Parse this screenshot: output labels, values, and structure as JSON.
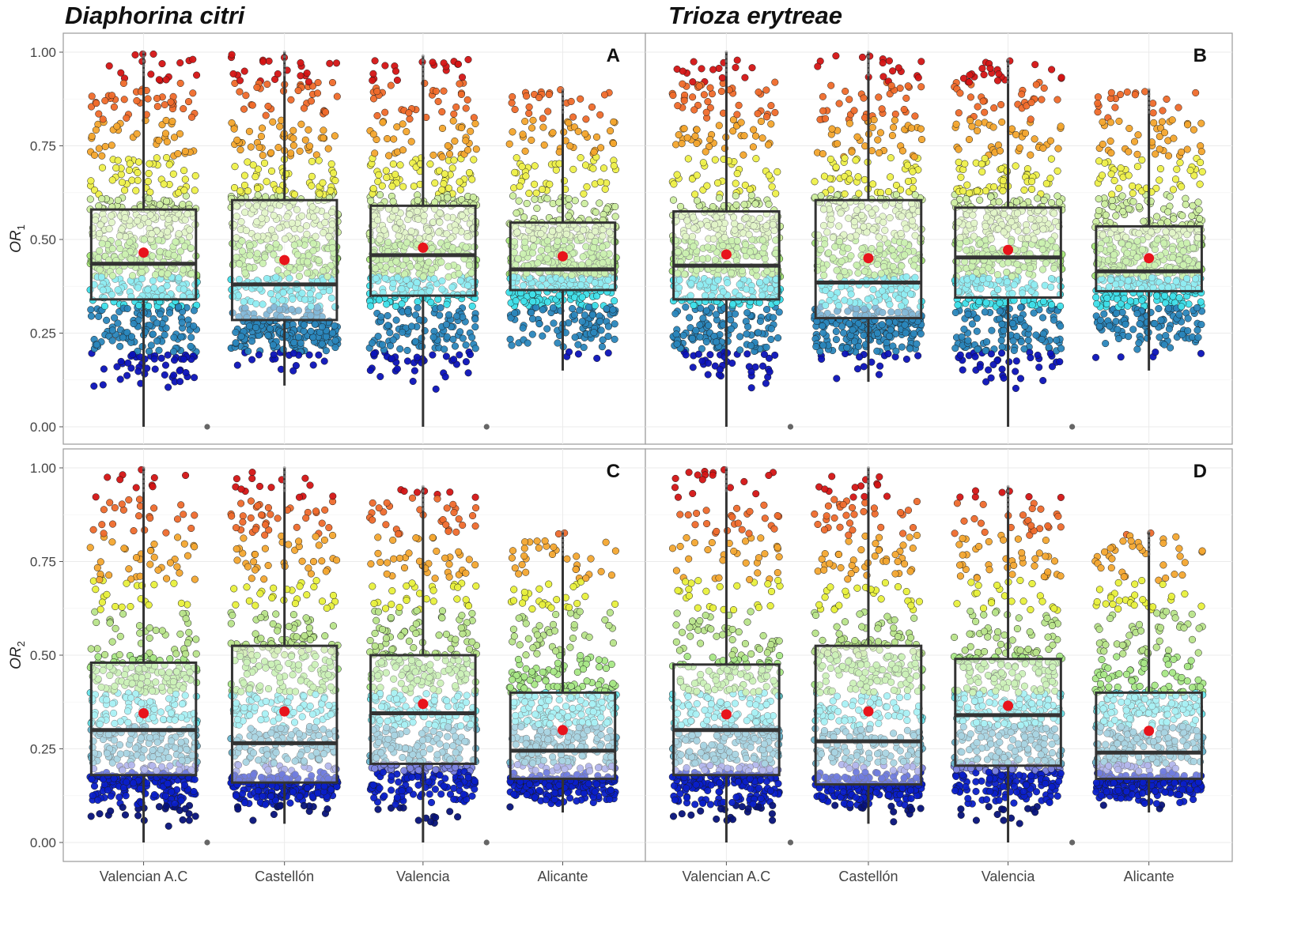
{
  "headings": {
    "left_species": "Diaphorina citri",
    "right_species": "Trioza erytreae"
  },
  "colors": {
    "mean_marker": "#e8141c",
    "box_stroke": "#333333",
    "outlier": "#666666",
    "grid": "#ebebeb",
    "bands": [
      "#0b12b8",
      "#2e8fc4",
      "#3fe6ef",
      "#9fe870",
      "#e8f04a",
      "#f5b12a",
      "#ef6a2a",
      "#d41414"
    ]
  },
  "chart_data": [
    {
      "type": "boxplot",
      "panel": "A",
      "species": "Diaphorina citri",
      "ylabel": "OR",
      "ylabel_subscript": "1",
      "ylim": [
        0,
        1
      ],
      "yticks": [
        "0.00",
        "0.25",
        "0.50",
        "0.75",
        "1.00"
      ],
      "categories": [
        "Valencian A.C",
        "Castellón",
        "Valencia",
        "Alicante"
      ],
      "series": [
        {
          "name": "Valencian A.C",
          "min": 0.0,
          "q1": 0.34,
          "median": 0.435,
          "q3": 0.58,
          "max": 1.0,
          "mean": 0.465,
          "outliers": [
            0.0
          ]
        },
        {
          "name": "Castellón",
          "min": 0.11,
          "q1": 0.285,
          "median": 0.38,
          "q3": 0.605,
          "max": 1.0,
          "mean": 0.445,
          "outliers": []
        },
        {
          "name": "Valencia",
          "min": 0.0,
          "q1": 0.35,
          "median": 0.458,
          "q3": 0.59,
          "max": 0.99,
          "mean": 0.478,
          "outliers": [
            0.0
          ]
        },
        {
          "name": "Alicante",
          "min": 0.15,
          "q1": 0.365,
          "median": 0.42,
          "q3": 0.545,
          "max": 0.9,
          "mean": 0.455,
          "outliers": []
        }
      ]
    },
    {
      "type": "boxplot",
      "panel": "B",
      "species": "Trioza erytreae",
      "ylim": [
        0,
        1
      ],
      "categories": [
        "Valencian A.C",
        "Castellón",
        "Valencia",
        "Alicante"
      ],
      "series": [
        {
          "name": "Valencian A.C",
          "min": 0.0,
          "q1": 0.34,
          "median": 0.43,
          "q3": 0.575,
          "max": 1.0,
          "mean": 0.46,
          "outliers": [
            0.0
          ]
        },
        {
          "name": "Castellón",
          "min": 0.12,
          "q1": 0.29,
          "median": 0.385,
          "q3": 0.605,
          "max": 1.0,
          "mean": 0.45,
          "outliers": []
        },
        {
          "name": "Valencia",
          "min": 0.0,
          "q1": 0.345,
          "median": 0.452,
          "q3": 0.585,
          "max": 0.98,
          "mean": 0.472,
          "outliers": [
            0.0
          ]
        },
        {
          "name": "Alicante",
          "min": 0.15,
          "q1": 0.362,
          "median": 0.415,
          "q3": 0.535,
          "max": 0.9,
          "mean": 0.45,
          "outliers": []
        }
      ]
    },
    {
      "type": "boxplot",
      "panel": "C",
      "species": "Diaphorina citri",
      "ylabel": "OR",
      "ylabel_subscript": "2",
      "ylim": [
        0,
        1
      ],
      "yticks": [
        "0.00",
        "0.25",
        "0.50",
        "0.75",
        "1.00"
      ],
      "categories": [
        "Valencian A.C",
        "Castellón",
        "Valencia",
        "Alicante"
      ],
      "series": [
        {
          "name": "Valencian A.C",
          "min": 0.0,
          "q1": 0.18,
          "median": 0.3,
          "q3": 0.48,
          "max": 1.0,
          "mean": 0.345,
          "outliers": [
            0.0
          ]
        },
        {
          "name": "Castellón",
          "min": 0.05,
          "q1": 0.16,
          "median": 0.265,
          "q3": 0.525,
          "max": 1.0,
          "mean": 0.35,
          "outliers": []
        },
        {
          "name": "Valencia",
          "min": 0.0,
          "q1": 0.21,
          "median": 0.345,
          "q3": 0.5,
          "max": 0.95,
          "mean": 0.37,
          "outliers": [
            0.0
          ]
        },
        {
          "name": "Alicante",
          "min": 0.08,
          "q1": 0.17,
          "median": 0.245,
          "q3": 0.4,
          "max": 0.83,
          "mean": 0.3,
          "outliers": []
        }
      ]
    },
    {
      "type": "boxplot",
      "panel": "D",
      "species": "Trioza erytreae",
      "ylim": [
        0,
        1
      ],
      "categories": [
        "Valencian A.C",
        "Castellón",
        "Valencia",
        "Alicante"
      ],
      "series": [
        {
          "name": "Valencian A.C",
          "min": 0.0,
          "q1": 0.18,
          "median": 0.3,
          "q3": 0.475,
          "max": 1.0,
          "mean": 0.342,
          "outliers": [
            0.0
          ]
        },
        {
          "name": "Castellón",
          "min": 0.05,
          "q1": 0.155,
          "median": 0.27,
          "q3": 0.525,
          "max": 1.0,
          "mean": 0.35,
          "outliers": []
        },
        {
          "name": "Valencia",
          "min": 0.0,
          "q1": 0.205,
          "median": 0.34,
          "q3": 0.49,
          "max": 0.95,
          "mean": 0.365,
          "outliers": [
            0.0
          ]
        },
        {
          "name": "Alicante",
          "min": 0.08,
          "q1": 0.17,
          "median": 0.24,
          "q3": 0.4,
          "max": 0.83,
          "mean": 0.298,
          "outliers": []
        }
      ]
    }
  ]
}
